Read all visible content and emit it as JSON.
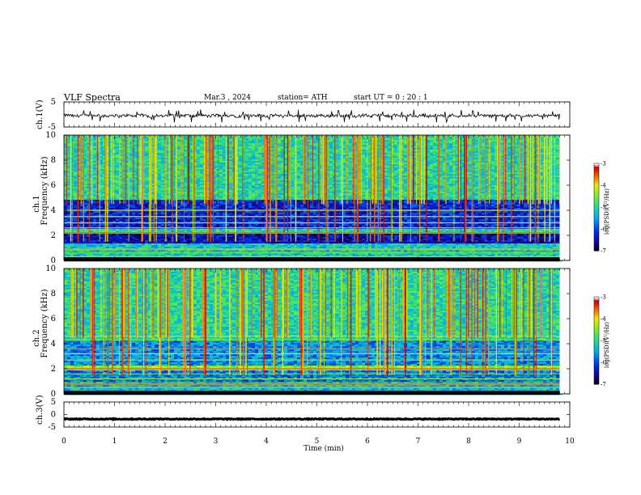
{
  "header": {
    "title": "VLF  Spectra",
    "date": "Mar.3  , 2024",
    "station": "station= ATH",
    "start": "start  UT  =    0  : 20 : 1"
  },
  "chart_data": [
    {
      "type": "line",
      "panel": "ch1-waveform",
      "ylabel": "ch.1(V)",
      "ylim": [
        -5,
        5
      ],
      "y_ticks": [
        "5",
        "-5"
      ],
      "x_range_min": [
        0,
        9.8
      ],
      "description_of_trace": "noisy waveform with baseline near -0.5 V and spikes to about -3 V",
      "baseline_v": -0.5,
      "spike_min_v": -3.2,
      "color": "#000000"
    },
    {
      "type": "heatmap",
      "panel": "ch1-spectrogram",
      "ylabel": "ch.1\nFrequency (kHz)",
      "ylabel_line1": "ch.1",
      "ylabel_line2": "Frequency (kHz)",
      "ylim": [
        0,
        10
      ],
      "y_ticks": [
        "0",
        "2",
        "4",
        "6",
        "8",
        "10"
      ],
      "x_range_min": [
        0,
        9.8
      ],
      "colorbar": {
        "label": "log(PSD)(V²/Hz)",
        "range": [
          -7,
          -3
        ],
        "ticks": [
          "-3",
          "-4",
          "-5",
          "-6",
          "-7"
        ]
      },
      "bands_khz": [
        {
          "from": 0,
          "to": 1.3,
          "level": -5.2
        },
        {
          "from": 1.3,
          "to": 2.1,
          "level": -6.4
        },
        {
          "from": 2.1,
          "to": 2.5,
          "level": -5.0
        },
        {
          "from": 2.5,
          "to": 4.8,
          "level": -6.2
        },
        {
          "from": 4.8,
          "to": 10,
          "level": -5.0
        }
      ],
      "lines_khz": [
        0.1,
        0.3,
        0.6,
        0.9,
        2.2,
        2.6,
        3.0,
        3.5,
        4.0
      ],
      "tone_khz": 2.2
    },
    {
      "type": "heatmap",
      "panel": "ch2-spectrogram",
      "ylabel": "ch.2\nFrequency (kHz)",
      "ylabel_line1": "ch.2",
      "ylabel_line2": "Frequency (kHz)",
      "ylim": [
        0,
        10
      ],
      "y_ticks": [
        "0",
        "2",
        "4",
        "6",
        "8",
        "10"
      ],
      "x_range_min": [
        0,
        9.8
      ],
      "colorbar": {
        "label": "log(PSD)(V²/Hz)",
        "range": [
          -7,
          -3
        ],
        "ticks": [
          "-3",
          "-4",
          "-5",
          "-6",
          "-7"
        ]
      },
      "bands_khz": [
        {
          "from": 0,
          "to": 1.0,
          "level": -5.3
        },
        {
          "from": 1.0,
          "to": 1.9,
          "level": -5.7
        },
        {
          "from": 1.9,
          "to": 2.3,
          "level": -4.4
        },
        {
          "from": 2.3,
          "to": 4.3,
          "level": -5.6
        },
        {
          "from": 4.3,
          "to": 10,
          "level": -5.0
        }
      ],
      "lines_khz": [
        0.2,
        0.5,
        0.8,
        1.2,
        1.6,
        2.0,
        2.7,
        3.2,
        3.6,
        4.3,
        4.6
      ],
      "tone_khz": 2.0
    },
    {
      "type": "line",
      "panel": "ch3-waveform",
      "ylabel": "ch.3(V)",
      "ylim": [
        -5,
        5
      ],
      "y_ticks": [
        "5",
        "0",
        "-5"
      ],
      "x_range_min": [
        0,
        9.8
      ],
      "baseline_v": -1.8,
      "color": "#000000"
    }
  ],
  "xaxis": {
    "label": "Time  (min)",
    "ticks": [
      "0",
      "1",
      "2",
      "3",
      "4",
      "5",
      "6",
      "7",
      "8",
      "9",
      "10"
    ],
    "xlim": [
      0,
      10
    ]
  }
}
